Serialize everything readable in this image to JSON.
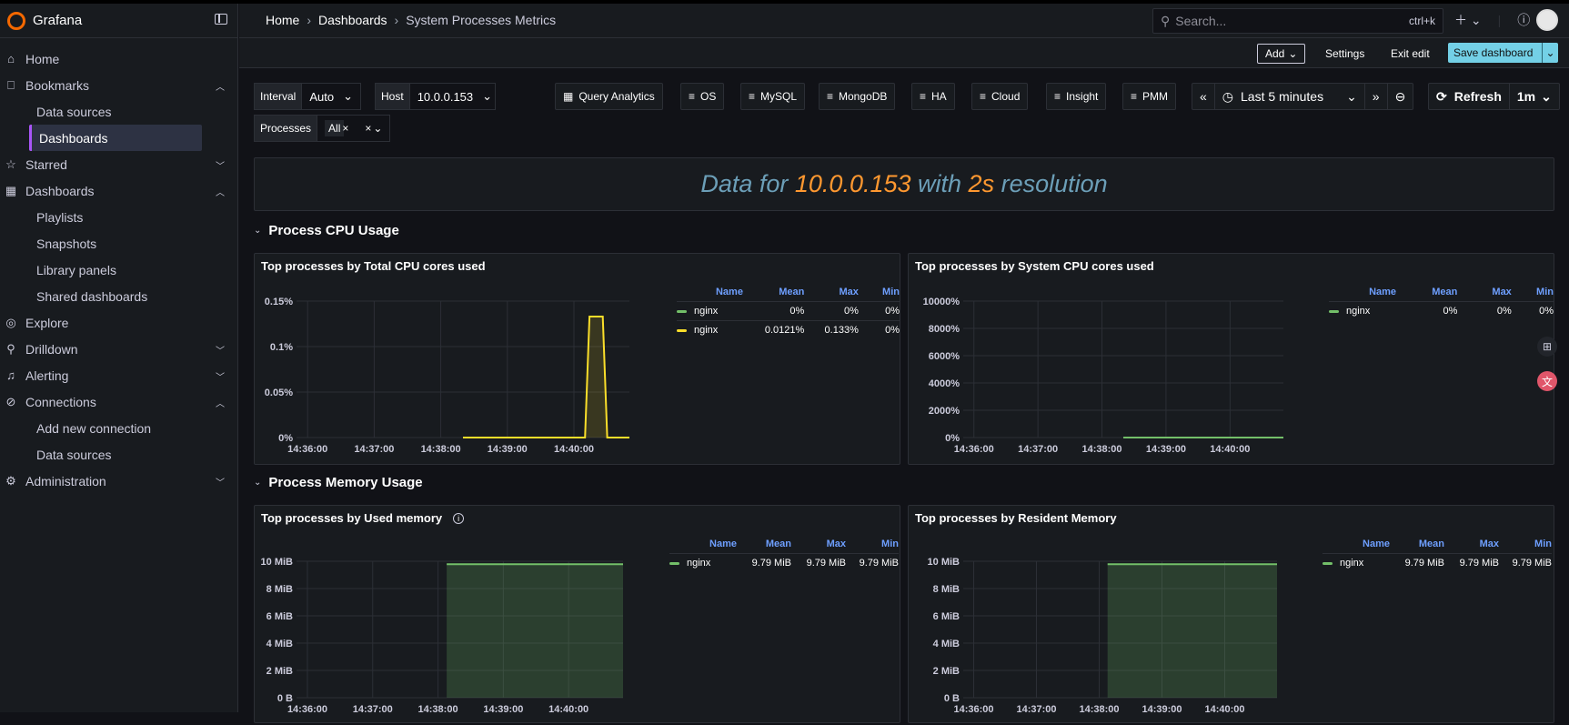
{
  "app": {
    "name": "Grafana"
  },
  "sidebar": {
    "items": [
      {
        "label": "Home",
        "icon": "home-icon"
      },
      {
        "label": "Bookmarks",
        "icon": "bookmark-icon",
        "expanded": true
      },
      {
        "label": "Data sources"
      },
      {
        "label": "Dashboards",
        "active": true
      },
      {
        "label": "Starred",
        "icon": "star-icon"
      },
      {
        "label": "Dashboards",
        "icon": "dashboards-icon",
        "expanded": true
      },
      {
        "label": "Playlists"
      },
      {
        "label": "Snapshots"
      },
      {
        "label": "Library panels"
      },
      {
        "label": "Shared dashboards"
      },
      {
        "label": "Explore",
        "icon": "compass-icon"
      },
      {
        "label": "Drilldown",
        "icon": "drilldown-icon"
      },
      {
        "label": "Alerting",
        "icon": "bell-icon"
      },
      {
        "label": "Connections",
        "icon": "connections-icon",
        "expanded": true
      },
      {
        "label": "Add new connection"
      },
      {
        "label": "Data sources"
      },
      {
        "label": "Administration",
        "icon": "gear-icon"
      }
    ]
  },
  "topbar": {
    "breadcrumb": [
      "Home",
      "Dashboards",
      "System Processes Metrics"
    ],
    "search_placeholder": "Search...",
    "search_shortcut": "ctrl+k"
  },
  "toolbar": {
    "add_label": "Add",
    "settings_label": "Settings",
    "exit_edit_label": "Exit edit",
    "save_label": "Save dashboard"
  },
  "variables": {
    "interval": {
      "label": "Interval",
      "value": "Auto"
    },
    "host": {
      "label": "Host",
      "value": "10.0.0.153"
    },
    "processes": {
      "label": "Processes",
      "value": "All"
    }
  },
  "links": [
    "Query Analytics",
    "OS",
    "MySQL",
    "MongoDB",
    "HA",
    "Cloud",
    "Insight",
    "PMM"
  ],
  "timepicker": {
    "range": "Last 5 minutes",
    "refresh_label": "Refresh",
    "refresh_interval": "1m"
  },
  "banner": {
    "part1": "Data for ",
    "host": "10.0.0.153",
    "part2": " with ",
    "resolution": "2s",
    "part3": " resolution"
  },
  "rows": [
    {
      "title": "Process CPU Usage"
    },
    {
      "title": "Process Memory Usage"
    }
  ],
  "colors": {
    "green": "#73bf69",
    "yellow": "#fade2a",
    "accent": "#73d0e6"
  },
  "panels": [
    {
      "title": "Top processes by Total CPU cores used",
      "legend": {
        "headers": [
          "Name",
          "Mean",
          "Max",
          "Min"
        ],
        "rows": [
          [
            "nginx",
            "0%",
            "0%",
            "0%"
          ],
          [
            "nginx",
            "0.0121%",
            "0.133%",
            "0%"
          ]
        ]
      }
    },
    {
      "title": "Top processes by System CPU cores used",
      "legend": {
        "headers": [
          "Name",
          "Mean",
          "Max",
          "Min"
        ],
        "rows": [
          [
            "nginx",
            "0%",
            "0%",
            "0%"
          ]
        ]
      }
    },
    {
      "title": "Top processes by Used memory",
      "legend": {
        "headers": [
          "Name",
          "Mean",
          "Max",
          "Min"
        ],
        "rows": [
          [
            "nginx",
            "9.79 MiB",
            "9.79 MiB",
            "9.79 MiB"
          ]
        ]
      }
    },
    {
      "title": "Top processes by Resident Memory",
      "legend": {
        "headers": [
          "Name",
          "Mean",
          "Max",
          "Min"
        ],
        "rows": [
          [
            "nginx",
            "9.79 MiB",
            "9.79 MiB",
            "9.79 MiB"
          ]
        ]
      }
    }
  ],
  "chart_data": [
    {
      "type": "line",
      "title": "Top processes by Total CPU cores used",
      "x_ticks": [
        "14:36:00",
        "14:37:00",
        "14:38:00",
        "14:39:00",
        "14:40:00"
      ],
      "y_ticks": [
        "0%",
        "0.05%",
        "0.1%",
        "0.15%"
      ],
      "ylim": [
        0,
        0.15
      ],
      "xlim": [
        "14:35:50",
        "14:40:50"
      ],
      "series": [
        {
          "name": "nginx",
          "color": "#73bf69",
          "x": [],
          "y": []
        },
        {
          "name": "nginx",
          "color": "#fade2a",
          "x": [
            "14:38:20",
            "14:40:10",
            "14:40:14",
            "14:40:26",
            "14:40:30",
            "14:40:50"
          ],
          "y": [
            0,
            0,
            0.133,
            0.133,
            0,
            0
          ]
        }
      ]
    },
    {
      "type": "line",
      "title": "Top processes by System CPU cores used",
      "x_ticks": [
        "14:36:00",
        "14:37:00",
        "14:38:00",
        "14:39:00",
        "14:40:00"
      ],
      "y_ticks": [
        "0%",
        "2000%",
        "4000%",
        "6000%",
        "8000%",
        "10000%"
      ],
      "ylim": [
        0,
        100
      ],
      "xlim": [
        "14:35:50",
        "14:40:50"
      ],
      "series": [
        {
          "name": "nginx",
          "color": "#73bf69",
          "x": [
            "14:38:20",
            "14:40:50"
          ],
          "y": [
            0,
            0
          ]
        }
      ]
    },
    {
      "type": "area",
      "title": "Top processes by Used memory",
      "x_ticks": [
        "14:36:00",
        "14:37:00",
        "14:38:00",
        "14:39:00",
        "14:40:00"
      ],
      "y_ticks": [
        "0 B",
        "2 MiB",
        "4 MiB",
        "6 MiB",
        "8 MiB",
        "10 MiB"
      ],
      "ylim": [
        0,
        10
      ],
      "xlim": [
        "14:35:50",
        "14:40:50"
      ],
      "series": [
        {
          "name": "nginx",
          "color": "#73bf69",
          "x": [
            "14:38:08",
            "14:40:50"
          ],
          "y": [
            9.79,
            9.79
          ]
        }
      ]
    },
    {
      "type": "area",
      "title": "Top processes by Resident Memory",
      "x_ticks": [
        "14:36:00",
        "14:37:00",
        "14:38:00",
        "14:39:00",
        "14:40:00"
      ],
      "y_ticks": [
        "0 B",
        "2 MiB",
        "4 MiB",
        "6 MiB",
        "8 MiB",
        "10 MiB"
      ],
      "ylim": [
        0,
        10
      ],
      "xlim": [
        "14:35:50",
        "14:40:50"
      ],
      "series": [
        {
          "name": "nginx",
          "color": "#73bf69",
          "x": [
            "14:38:08",
            "14:40:50"
          ],
          "y": [
            9.79,
            9.79
          ]
        }
      ]
    }
  ]
}
